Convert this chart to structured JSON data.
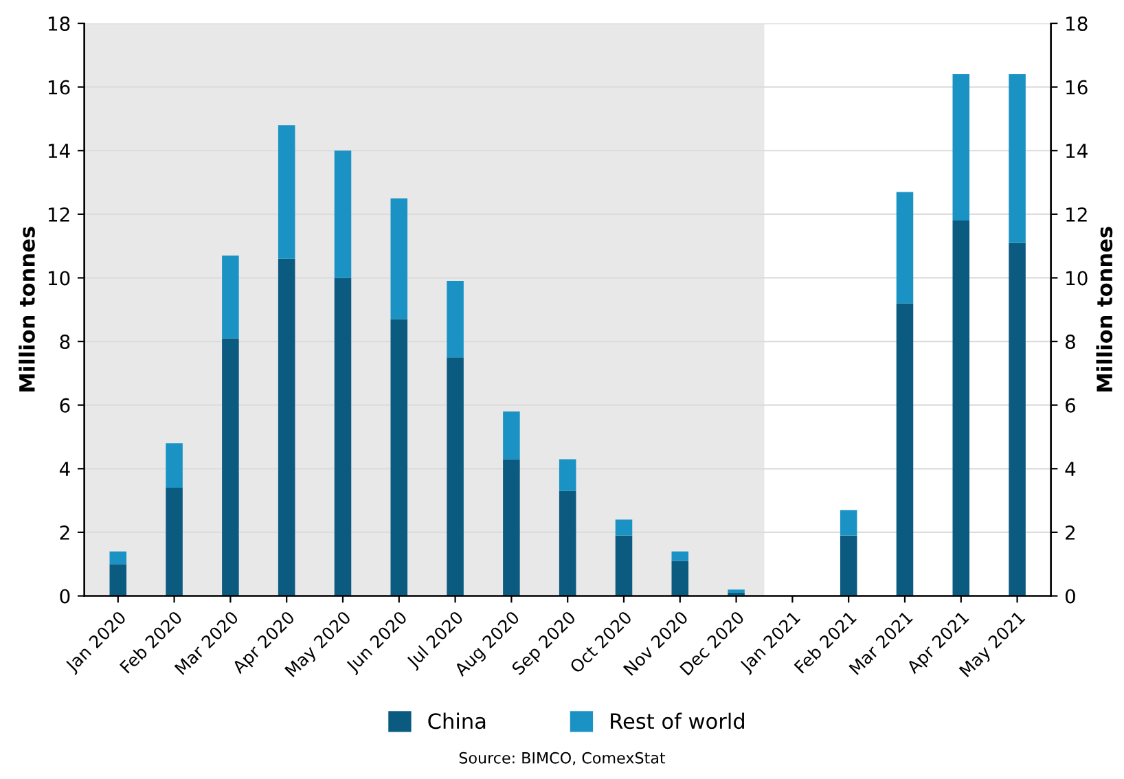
{
  "chart_data": {
    "type": "bar",
    "stacked": true,
    "ylabel": "Million tonnes",
    "y2label": "Million tonnes",
    "categories": [
      "Jan 2020",
      "Feb 2020",
      "Mar 2020",
      "Apr 2020",
      "May 2020",
      "Jun 2020",
      "Jul 2020",
      "Aug 2020",
      "Sep 2020",
      "Oct 2020",
      "Nov 2020",
      "Dec 2020",
      "Jan 2021",
      "Feb 2021",
      "Mar 2021",
      "Apr 2021",
      "May 2021"
    ],
    "series": [
      {
        "name": "China",
        "color": "#0b5a80",
        "values": [
          1.0,
          3.4,
          8.1,
          10.6,
          10.0,
          8.7,
          7.5,
          4.3,
          3.3,
          1.9,
          1.1,
          0.1,
          0,
          1.9,
          9.2,
          11.8,
          11.1
        ]
      },
      {
        "name": "Rest of world",
        "color": "#1a93c4",
        "values": [
          0.4,
          1.4,
          2.6,
          4.2,
          4.0,
          3.8,
          2.4,
          1.5,
          1.0,
          0.5,
          0.3,
          0.1,
          0,
          0.8,
          3.5,
          4.6,
          5.3
        ]
      }
    ],
    "ylim": [
      0,
      18
    ],
    "yticks": [
      0,
      2,
      4,
      6,
      8,
      10,
      12,
      14,
      16,
      18
    ],
    "y2lim": [
      0,
      18
    ],
    "y2ticks": [
      0,
      2,
      4,
      6,
      8,
      10,
      12,
      14,
      16,
      18
    ],
    "bands": [
      {
        "axis": "x",
        "from": "Jan 2020",
        "to": "Dec 2020",
        "color": "#e8e8e8"
      }
    ],
    "grid": "y",
    "legend": "bottom",
    "annotations": [
      "Source: BIMCO, ComexStat"
    ]
  }
}
